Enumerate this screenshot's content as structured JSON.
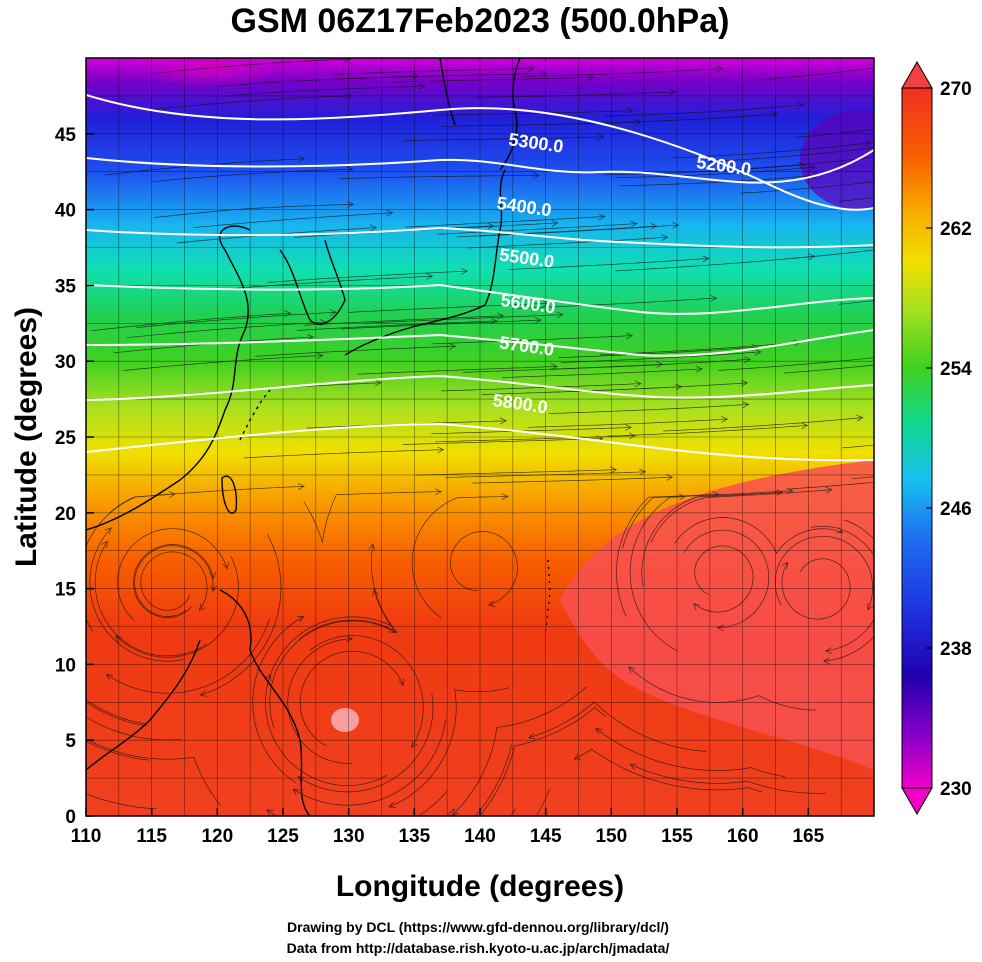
{
  "title": "GSM 06Z17Feb2023 (500.0hPa)",
  "xlabel": "Longitude (degrees)",
  "ylabel": "Latitude  (degrees)",
  "credits": [
    "Drawing by DCL (https://www.gfd-dennou.org/library/dcl/)",
    "Data from http://database.rish.kyoto-u.ac.jp/arch/jmadata/"
  ],
  "map": {
    "lon_range": [
      110,
      170
    ],
    "lat_range": [
      0,
      50
    ],
    "lon_ticks": [
      "110",
      "115",
      "120",
      "125",
      "130",
      "135",
      "140",
      "145",
      "150",
      "155",
      "160",
      "165"
    ],
    "lat_ticks": [
      "0",
      "5",
      "10",
      "15",
      "20",
      "25",
      "30",
      "35",
      "40",
      "45"
    ],
    "fill_field": "temperature",
    "overlay": [
      "geopotential-height-contours",
      "wind-streamlines",
      "coastlines"
    ]
  },
  "colorbar": {
    "ticks": [
      "230",
      "238",
      "246",
      "254",
      "262",
      "270"
    ],
    "range": [
      230,
      270
    ],
    "extend": "both"
  },
  "contours": [
    {
      "label": "5200.0",
      "lon": 158.5,
      "lat": 42.5
    },
    {
      "label": "5300.0",
      "lon": 144.2,
      "lat": 44.0
    },
    {
      "label": "5400.0",
      "lon": 143.3,
      "lat": 39.8
    },
    {
      "label": "5500.0",
      "lon": 143.5,
      "lat": 36.4
    },
    {
      "label": "5600.0",
      "lon": 143.6,
      "lat": 33.4
    },
    {
      "label": "5700.0",
      "lon": 143.5,
      "lat": 30.6
    },
    {
      "label": "5800.0",
      "lon": 143.0,
      "lat": 26.8
    }
  ]
}
